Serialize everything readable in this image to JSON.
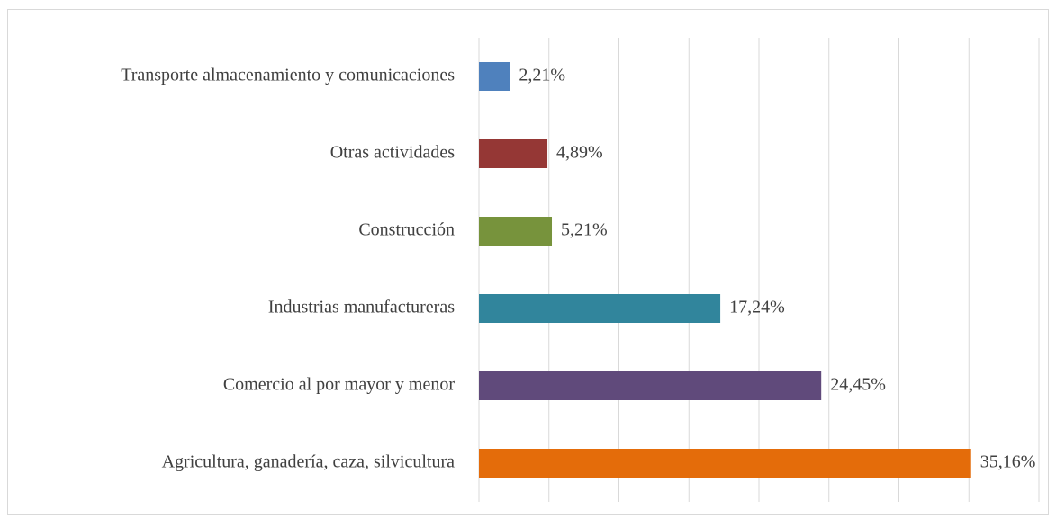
{
  "chart_data": {
    "type": "bar",
    "orientation": "horizontal",
    "categories": [
      "Transporte almacenamiento y comunicaciones",
      "Otras actividades",
      "Construcción",
      "Industrias manufactureras",
      "Comercio al por mayor y menor",
      "Agricultura, ganadería, caza, silvicultura"
    ],
    "values": [
      2.21,
      4.89,
      5.21,
      17.24,
      24.45,
      35.16
    ],
    "value_labels": [
      "2,21%",
      "4,89%",
      "5,21%",
      "17,24%",
      "24,45%",
      "35,16%"
    ],
    "colors": [
      "#4f81bd",
      "#953735",
      "#77933c",
      "#31859c",
      "#604a7b",
      "#e46c0a"
    ],
    "xlim": [
      0,
      40
    ],
    "xticks": [
      0,
      5,
      10,
      15,
      20,
      25,
      30,
      35,
      40
    ],
    "grid": true
  }
}
